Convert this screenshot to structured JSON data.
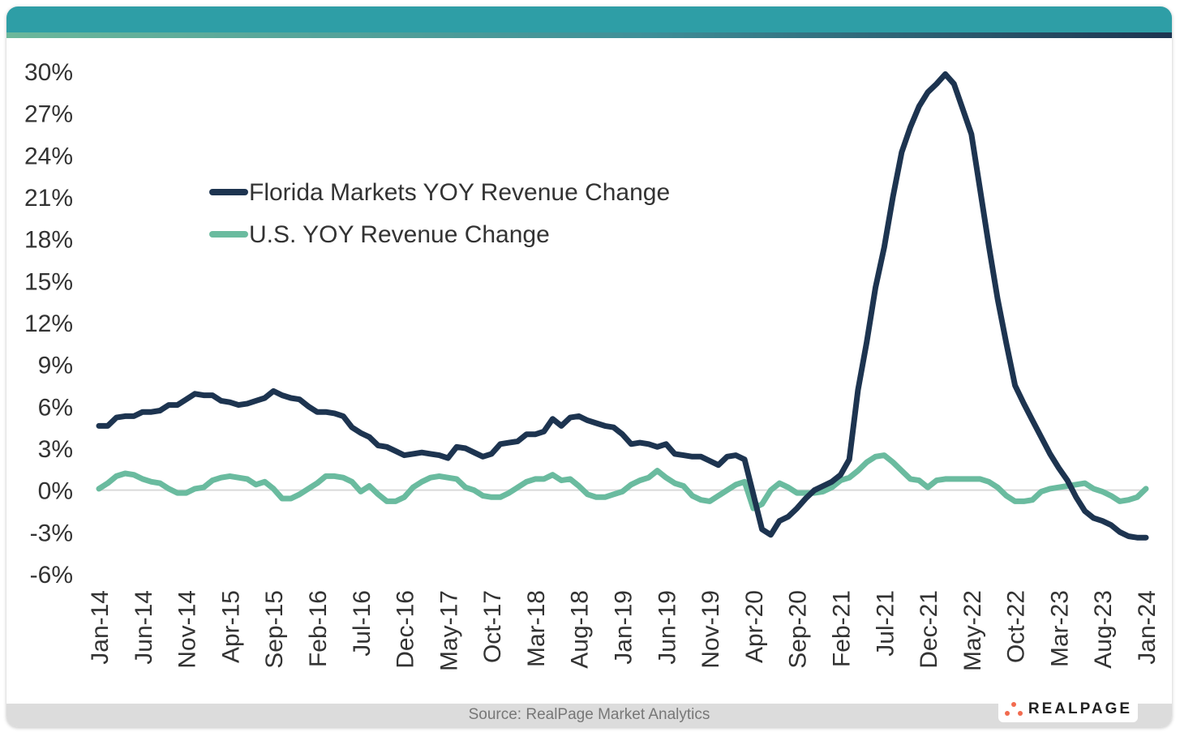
{
  "source": "Source: RealPage Market Analytics",
  "logo_text": "REALPAGE",
  "colors": {
    "florida": "#1d3450",
    "us": "#6abb9f",
    "header": "#2e9ea6"
  },
  "chart_data": {
    "type": "line",
    "title": "",
    "xlabel": "",
    "ylabel": "",
    "ylim": [
      -6,
      30
    ],
    "yticks": [
      30,
      27,
      24,
      21,
      18,
      15,
      12,
      9,
      6,
      3,
      0,
      -3,
      -6
    ],
    "ytick_labels": [
      "30%",
      "27%",
      "24%",
      "21%",
      "18%",
      "15%",
      "12%",
      "9%",
      "6%",
      "3%",
      "0%",
      "-3%",
      "-6%"
    ],
    "xtick_labels": [
      "Jan-14",
      "Jun-14",
      "Nov-14",
      "Apr-15",
      "Sep-15",
      "Feb-16",
      "Jul-16",
      "Dec-16",
      "May-17",
      "Oct-17",
      "Mar-18",
      "Aug-18",
      "Jan-19",
      "Jun-19",
      "Nov-19",
      "Apr-20",
      "Sep-20",
      "Feb-21",
      "Jul-21",
      "Dec-21",
      "May-22",
      "Oct-22",
      "Mar-23",
      "Aug-23",
      "Jan-24"
    ],
    "x": [
      "Jan-14",
      "Feb-14",
      "Mar-14",
      "Apr-14",
      "May-14",
      "Jun-14",
      "Jul-14",
      "Aug-14",
      "Sep-14",
      "Oct-14",
      "Nov-14",
      "Dec-14",
      "Jan-15",
      "Feb-15",
      "Mar-15",
      "Apr-15",
      "May-15",
      "Jun-15",
      "Jul-15",
      "Aug-15",
      "Sep-15",
      "Oct-15",
      "Nov-15",
      "Dec-15",
      "Jan-16",
      "Feb-16",
      "Mar-16",
      "Apr-16",
      "May-16",
      "Jun-16",
      "Jul-16",
      "Aug-16",
      "Sep-16",
      "Oct-16",
      "Nov-16",
      "Dec-16",
      "Jan-17",
      "Feb-17",
      "Mar-17",
      "Apr-17",
      "May-17",
      "Jun-17",
      "Jul-17",
      "Aug-17",
      "Sep-17",
      "Oct-17",
      "Nov-17",
      "Dec-17",
      "Jan-18",
      "Feb-18",
      "Mar-18",
      "Apr-18",
      "May-18",
      "Jun-18",
      "Jul-18",
      "Aug-18",
      "Sep-18",
      "Oct-18",
      "Nov-18",
      "Dec-18",
      "Jan-19",
      "Feb-19",
      "Mar-19",
      "Apr-19",
      "May-19",
      "Jun-19",
      "Jul-19",
      "Aug-19",
      "Sep-19",
      "Oct-19",
      "Nov-19",
      "Dec-19",
      "Jan-20",
      "Feb-20",
      "Mar-20",
      "Apr-20",
      "May-20",
      "Jun-20",
      "Jul-20",
      "Aug-20",
      "Sep-20",
      "Oct-20",
      "Nov-20",
      "Dec-20",
      "Jan-21",
      "Feb-21",
      "Mar-21",
      "Apr-21",
      "May-21",
      "Jun-21",
      "Jul-21",
      "Aug-21",
      "Sep-21",
      "Oct-21",
      "Nov-21",
      "Dec-21",
      "Jan-22",
      "Feb-22",
      "Mar-22",
      "Apr-22",
      "May-22",
      "Jun-22",
      "Jul-22",
      "Aug-22",
      "Sep-22",
      "Oct-22",
      "Nov-22",
      "Dec-22",
      "Jan-23",
      "Feb-23",
      "Mar-23",
      "Apr-23",
      "May-23",
      "Jun-23",
      "Jul-23",
      "Aug-23",
      "Sep-23",
      "Oct-23",
      "Nov-23",
      "Dec-23",
      "Jan-24"
    ],
    "grid": "zero line only",
    "legend_position": "upper-left",
    "series": [
      {
        "name": "Florida Markets YOY Revenue Change",
        "color": "#1d3450",
        "values": [
          4.6,
          4.6,
          5.2,
          5.3,
          5.3,
          5.6,
          5.6,
          5.7,
          6.1,
          6.1,
          6.5,
          6.9,
          6.8,
          6.8,
          6.4,
          6.3,
          6.1,
          6.2,
          6.4,
          6.6,
          7.1,
          6.8,
          6.6,
          6.5,
          6.0,
          5.6,
          5.6,
          5.5,
          5.3,
          4.5,
          4.1,
          3.8,
          3.2,
          3.1,
          2.8,
          2.5,
          2.6,
          2.7,
          2.6,
          2.5,
          2.3,
          3.1,
          3.0,
          2.7,
          2.4,
          2.6,
          3.3,
          3.4,
          3.5,
          4.0,
          4.0,
          4.2,
          5.1,
          4.6,
          5.2,
          5.3,
          5.0,
          4.8,
          4.6,
          4.5,
          4.0,
          3.3,
          3.4,
          3.3,
          3.1,
          3.3,
          2.6,
          2.5,
          2.4,
          2.4,
          2.1,
          1.8,
          2.4,
          2.5,
          2.2,
          -0.3,
          -2.8,
          -3.2,
          -2.2,
          -1.9,
          -1.3,
          -0.6,
          0.0,
          0.3,
          0.6,
          1.1,
          2.2,
          7.2,
          10.6,
          14.5,
          17.4,
          21.0,
          24.2,
          26.0,
          27.5,
          28.5,
          29.1,
          29.8,
          29.1,
          27.3,
          25.5,
          21.5,
          17.5,
          13.7,
          10.5,
          7.5,
          6.2,
          5.0,
          3.8,
          2.6,
          1.6,
          0.7,
          -0.5,
          -1.5,
          -2.0,
          -2.2,
          -2.5,
          -3.0,
          -3.3,
          -3.4,
          -3.4
        ]
      },
      {
        "name": "U.S. YOY Revenue Change",
        "color": "#6abb9f",
        "values": [
          0.1,
          0.5,
          1.0,
          1.2,
          1.1,
          0.8,
          0.6,
          0.5,
          0.1,
          -0.2,
          -0.2,
          0.1,
          0.2,
          0.7,
          0.9,
          1.0,
          0.9,
          0.8,
          0.4,
          0.6,
          0.1,
          -0.6,
          -0.6,
          -0.3,
          0.1,
          0.5,
          1.0,
          1.0,
          0.9,
          0.6,
          -0.1,
          0.3,
          -0.3,
          -0.8,
          -0.8,
          -0.5,
          0.2,
          0.6,
          0.9,
          1.0,
          0.9,
          0.8,
          0.2,
          0.0,
          -0.4,
          -0.5,
          -0.5,
          -0.2,
          0.2,
          0.6,
          0.8,
          0.8,
          1.1,
          0.7,
          0.8,
          0.3,
          -0.3,
          -0.5,
          -0.5,
          -0.3,
          -0.1,
          0.4,
          0.7,
          0.9,
          1.4,
          0.9,
          0.5,
          0.3,
          -0.4,
          -0.7,
          -0.8,
          -0.4,
          0.0,
          0.4,
          0.6,
          -1.3,
          -1.0,
          0.0,
          0.5,
          0.2,
          -0.2,
          -0.2,
          -0.2,
          -0.1,
          0.2,
          0.7,
          0.9,
          1.4,
          2.0,
          2.4,
          2.5,
          2.0,
          1.4,
          0.8,
          0.7,
          0.2,
          0.7,
          0.8,
          0.8,
          0.8,
          0.8,
          0.8,
          0.6,
          0.2,
          -0.4,
          -0.8,
          -0.8,
          -0.7,
          -0.1,
          0.1,
          0.2,
          0.3,
          0.4,
          0.5,
          0.1,
          -0.1,
          -0.4,
          -0.8,
          -0.7,
          -0.5,
          0.1
        ]
      }
    ]
  }
}
